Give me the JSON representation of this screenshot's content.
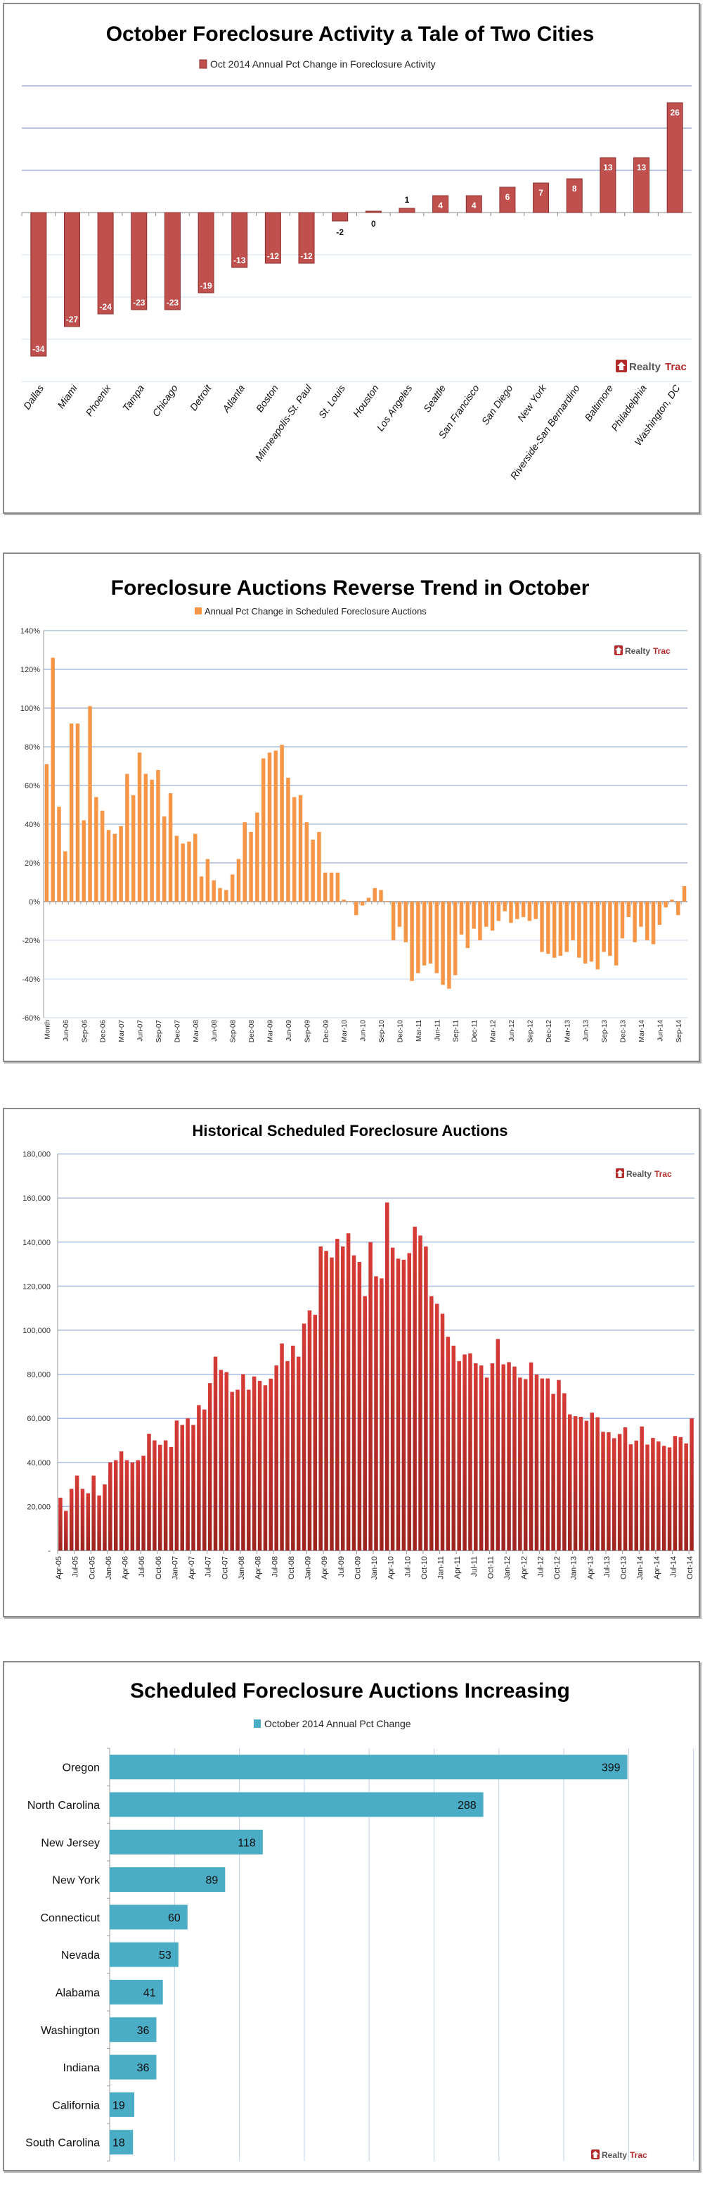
{
  "brand": {
    "logo_text_a": "Realty",
    "logo_text_b": "Trac",
    "logo_color": "#b22a2a"
  },
  "chart_data": [
    {
      "type": "bar",
      "title": "October Foreclosure Activity a Tale of Two Cities",
      "legend": "Oct 2014 Annual Pct Change in Foreclosure Activity",
      "legend_position": "top",
      "color": "#c0504d",
      "xlabel": "",
      "ylabel": "",
      "ylim": [
        -40,
        30
      ],
      "grid": true,
      "yticks_shown": false,
      "categories": [
        "Dallas",
        "Miami",
        "Phoenix",
        "Tampa",
        "Chicago",
        "Detroit",
        "Atlanta",
        "Boston",
        "Minneapolis-St. Paul",
        "St. Louis",
        "Houston",
        "Los Angeles",
        "Seattle",
        "San Francisco",
        "San Diego",
        "New York",
        "Riverside-San Bernardino",
        "Baltimore",
        "Philadelphia",
        "Washington, DC"
      ],
      "values": [
        -34,
        -27,
        -24,
        -23,
        -23,
        -19,
        -13,
        -12,
        -12,
        -2,
        0,
        1,
        4,
        4,
        6,
        7,
        8,
        13,
        13,
        26
      ],
      "data_labels": [
        "-34",
        "-27",
        "-24",
        "-23",
        "-23",
        "-19",
        "-13",
        "-12",
        "-12",
        "-2",
        "0",
        "1",
        "4",
        "4",
        "6",
        "7",
        "8",
        "13",
        "13",
        "26"
      ]
    },
    {
      "type": "bar",
      "title": "Foreclosure Auctions Reverse Trend in October",
      "legend": "Annual Pct Change in Scheduled Foreclosure Auctions",
      "legend_position": "top",
      "color": "#f79646",
      "xlabel": "",
      "ylabel": "",
      "ylim": [
        -60,
        140
      ],
      "yticks": [
        "-60%",
        "-40%",
        "-20%",
        "0%",
        "20%",
        "40%",
        "60%",
        "80%",
        "100%",
        "120%",
        "140%"
      ],
      "ytick_values": [
        -60,
        -40,
        -20,
        0,
        20,
        40,
        60,
        80,
        100,
        120,
        140
      ],
      "grid": true,
      "x_start": "Mar-06",
      "x_end": "Oct-14",
      "xtick_labels": [
        "Month",
        "Jun-06",
        "Sep-06",
        "Dec-06",
        "Mar-07",
        "Jun-07",
        "Sep-07",
        "Dec-07",
        "Mar-08",
        "Jun-08",
        "Sep-08",
        "Dec-08",
        "Mar-09",
        "Jun-09",
        "Sep-09",
        "Dec-09",
        "Mar-10",
        "Jun-10",
        "Sep-10",
        "Dec-10",
        "Mar-11",
        "Jun-11",
        "Sep-11",
        "Dec-11",
        "Mar-12",
        "Jun-12",
        "Sep-12",
        "Dec-12",
        "Mar-13",
        "Jun-13",
        "Sep-13",
        "Dec-13",
        "Mar-14",
        "Jun-14",
        "Sep-14"
      ],
      "xtick_every": 3,
      "values": [
        71,
        126,
        49,
        26,
        92,
        92,
        42,
        101,
        54,
        47,
        37,
        35,
        39,
        66,
        55,
        77,
        66,
        63,
        68,
        44,
        56,
        34,
        30,
        31,
        35,
        13,
        22,
        11,
        7,
        6,
        14,
        22,
        41,
        36,
        46,
        74,
        77,
        78,
        81,
        64,
        54,
        55,
        41,
        32,
        36,
        15,
        15,
        15,
        1,
        0,
        -7,
        -2,
        2,
        7,
        6,
        0,
        -20,
        -13,
        -21,
        -41,
        -37,
        -33,
        -32,
        -37,
        -43,
        -45,
        -38,
        -17,
        -24,
        -14,
        -20,
        -13,
        -15,
        -10,
        -5,
        -11,
        -9,
        -8,
        -10,
        -9,
        -26,
        -27,
        -29,
        -28,
        -26,
        -20,
        -29,
        -32,
        -31,
        -35,
        -26,
        -28,
        -33,
        -19,
        -8,
        -21,
        -13,
        -20,
        -22,
        -12,
        -3,
        1,
        -7,
        8
      ]
    },
    {
      "type": "bar",
      "title": "Historical Scheduled Foreclosure Auctions",
      "legend": "",
      "color": "#c0302c",
      "xlabel": "",
      "ylabel": "",
      "ylim": [
        0,
        180000
      ],
      "yticks": [
        "-",
        "20,000",
        "40,000",
        "60,000",
        "80,000",
        "100,000",
        "120,000",
        "140,000",
        "160,000",
        "180,000"
      ],
      "ytick_values": [
        0,
        20000,
        40000,
        60000,
        80000,
        100000,
        120000,
        140000,
        160000,
        180000
      ],
      "grid": true,
      "x_start": "Apr-05",
      "x_end": "Oct-14",
      "xtick_labels": [
        "Apr-05",
        "Jul-05",
        "Oct-05",
        "Jan-06",
        "Apr-06",
        "Jul-06",
        "Oct-06",
        "Jan-07",
        "Apr-07",
        "Jul-07",
        "Oct-07",
        "Jan-08",
        "Apr-08",
        "Jul-08",
        "Oct-08",
        "Jan-09",
        "Apr-09",
        "Jul-09",
        "Oct-09",
        "Jan-10",
        "Apr-10",
        "Jul-10",
        "Oct-10",
        "Jan-11",
        "Apr-11",
        "Jul-11",
        "Oct-11",
        "Jan-12",
        "Apr-12",
        "Jul-12",
        "Oct-12",
        "Jan-13",
        "Apr-13",
        "Jul-13",
        "Oct-13",
        "Jan-14",
        "Apr-14",
        "Jul-14",
        "Oct-14"
      ],
      "xtick_every": 3,
      "values": [
        24000,
        18000,
        28000,
        34000,
        28000,
        26000,
        34000,
        25000,
        30000,
        40000,
        41000,
        45000,
        41000,
        40000,
        41000,
        43000,
        53000,
        50000,
        48000,
        50000,
        47000,
        59000,
        57000,
        60000,
        57000,
        66000,
        64000,
        76000,
        88000,
        82000,
        81000,
        72000,
        73000,
        80000,
        73000,
        79000,
        77000,
        75000,
        78000,
        84000,
        94000,
        86000,
        93000,
        88000,
        103000,
        109000,
        107000,
        138000,
        136000,
        133000,
        141500,
        138000,
        144000,
        134000,
        131000,
        115500,
        140000,
        124500,
        123500,
        158000,
        137500,
        132500,
        132000,
        135000,
        147000,
        143000,
        138000,
        115500,
        112000,
        107500,
        97000,
        93000,
        86000,
        89000,
        89500,
        85000,
        84000,
        78500,
        85000,
        96000,
        84500,
        85500,
        83500,
        78500,
        77800,
        85400,
        79900,
        78100,
        78100,
        71100,
        77400,
        71400,
        61800,
        61000,
        60700,
        58900,
        62600,
        60500,
        53900,
        53700,
        51000,
        52900,
        55900,
        48200,
        49900,
        56300,
        48100,
        51100,
        49500,
        47500,
        46800,
        52000,
        51500,
        48600,
        60000
      ]
    },
    {
      "type": "bar",
      "orientation": "horizontal",
      "title": "Scheduled Foreclosure Auctions Increasing",
      "legend": "October 2014 Annual Pct Change",
      "legend_position": "top",
      "color": "#4bacc6",
      "xlabel": "",
      "ylabel": "",
      "xlim": [
        0,
        450
      ],
      "grid": true,
      "xticks_shown": false,
      "categories": [
        "Oregon",
        "North Carolina",
        "New Jersey",
        "New York",
        "Connecticut",
        "Nevada",
        "Alabama",
        "Washington",
        "Indiana",
        "California",
        "South Carolina"
      ],
      "values": [
        399,
        288,
        118,
        89,
        60,
        53,
        41,
        36,
        36,
        19,
        18
      ],
      "data_labels": [
        "399",
        "288",
        "118",
        "89",
        "60",
        "53",
        "41",
        "36",
        "36",
        "19",
        "18"
      ]
    }
  ]
}
